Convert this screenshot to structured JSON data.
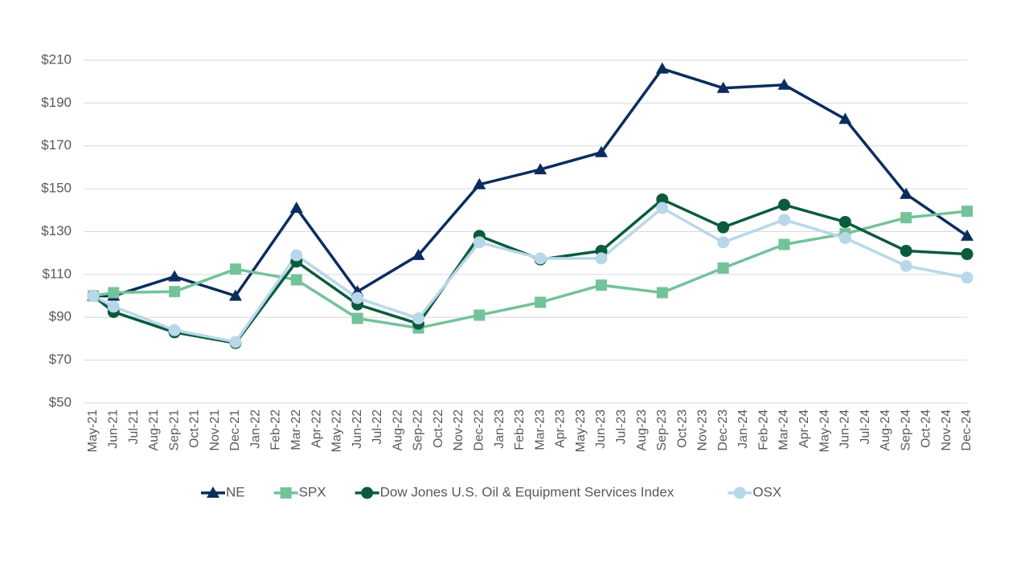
{
  "chart_data": {
    "type": "line",
    "categories": [
      "May-21",
      "Jun-21",
      "Jul-21",
      "Aug-21",
      "Sep-21",
      "Oct-21",
      "Nov-21",
      "Dec-21",
      "Jan-22",
      "Feb-22",
      "Mar-22",
      "Apr-22",
      "May-22",
      "Jun-22",
      "Jul-22",
      "Aug-22",
      "Sep-22",
      "Oct-22",
      "Nov-22",
      "Dec-22",
      "Jan-23",
      "Feb-23",
      "Mar-23",
      "Apr-23",
      "May-23",
      "Jun-23",
      "Jul-23",
      "Aug-23",
      "Sep-23",
      "Oct-23",
      "Nov-23",
      "Dec-23",
      "Jan-24",
      "Feb-24",
      "Mar-24",
      "Apr-24",
      "May-24",
      "Jun-24",
      "Jul-24",
      "Aug-24",
      "Sep-24",
      "Oct-24",
      "Nov-24",
      "Dec-24"
    ],
    "series": [
      {
        "name": "NE",
        "color": "#0b2d5e",
        "marker": "triangle",
        "values": [
          100,
          100,
          null,
          null,
          109,
          null,
          null,
          100,
          null,
          null,
          141,
          null,
          null,
          102,
          null,
          null,
          119,
          null,
          null,
          152,
          null,
          null,
          159,
          null,
          null,
          167,
          null,
          null,
          206,
          null,
          null,
          197,
          null,
          null,
          198.5,
          null,
          null,
          182.5,
          null,
          null,
          147.5,
          null,
          null,
          128
        ]
      },
      {
        "name": "SPX",
        "color": "#74c29a",
        "marker": "square",
        "values": [
          100,
          101.5,
          null,
          null,
          102,
          null,
          null,
          112.5,
          null,
          null,
          107.5,
          null,
          null,
          89.5,
          null,
          null,
          85,
          null,
          null,
          91,
          null,
          null,
          97,
          null,
          null,
          105,
          null,
          null,
          101.5,
          null,
          null,
          113,
          null,
          null,
          124,
          null,
          null,
          129,
          null,
          null,
          136.5,
          null,
          null,
          139.5
        ]
      },
      {
        "name": "Dow Jones U.S. Oil & Equipment Services Index",
        "color": "#0a5b3e",
        "marker": "circle",
        "values": [
          100,
          92.5,
          null,
          null,
          83,
          null,
          null,
          78,
          null,
          null,
          116,
          null,
          null,
          96,
          null,
          null,
          87,
          null,
          null,
          128,
          null,
          null,
          117,
          null,
          null,
          121,
          null,
          null,
          145,
          null,
          null,
          132,
          null,
          null,
          142.5,
          null,
          null,
          134.5,
          null,
          null,
          121,
          null,
          null,
          119.5
        ]
      },
      {
        "name": "OSX",
        "color": "#b8d8ea",
        "marker": "circle",
        "values": [
          100,
          95,
          null,
          null,
          84,
          null,
          null,
          78.5,
          null,
          null,
          119,
          null,
          null,
          99,
          null,
          null,
          89.5,
          null,
          null,
          125,
          null,
          null,
          117.5,
          null,
          null,
          117.5,
          null,
          null,
          141,
          null,
          null,
          125,
          null,
          null,
          135.5,
          null,
          null,
          127,
          null,
          null,
          114,
          null,
          null,
          108.5
        ]
      }
    ],
    "ylim": [
      50,
      210
    ],
    "yticks": [
      {
        "value": 50,
        "label": "$50"
      },
      {
        "value": 70,
        "label": "$70"
      },
      {
        "value": 90,
        "label": "$90"
      },
      {
        "value": 110,
        "label": "$110"
      },
      {
        "value": 130,
        "label": "$130"
      },
      {
        "value": 150,
        "label": "$150"
      },
      {
        "value": 170,
        "label": "$170"
      },
      {
        "value": 190,
        "label": "$190"
      },
      {
        "value": 210,
        "label": "$210"
      }
    ],
    "grid": true,
    "connect_gaps": true,
    "legend": "bottom"
  }
}
